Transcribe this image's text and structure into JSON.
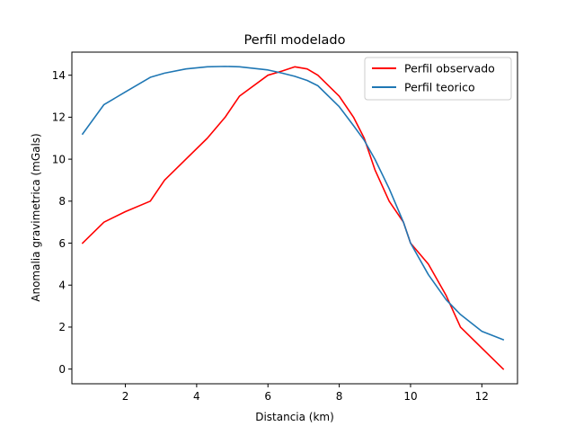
{
  "chart_data": {
    "type": "line",
    "title": "Perfil modelado",
    "xlabel": "Distancia (km)",
    "ylabel": "Anomalia gravimetrica (mGals)",
    "xlim": [
      0.5,
      13.0
    ],
    "ylim": [
      -0.7,
      15.1
    ],
    "xticks": [
      2,
      4,
      6,
      8,
      10,
      12
    ],
    "yticks": [
      0,
      2,
      4,
      6,
      8,
      10,
      12,
      14
    ],
    "grid": false,
    "legend_position": "top-right",
    "series": [
      {
        "name": "Perfil observado",
        "color": "#ff0000",
        "x": [
          0.8,
          1.4,
          2.0,
          2.7,
          3.1,
          3.7,
          4.3,
          4.8,
          5.2,
          6.0,
          6.4,
          6.75,
          7.1,
          7.4,
          8.0,
          8.4,
          8.7,
          9.0,
          9.4,
          9.8,
          10.0,
          10.5,
          11.0,
          11.4,
          12.0,
          12.6
        ],
        "y": [
          6.0,
          7.0,
          7.5,
          8.0,
          9.0,
          10.0,
          11.0,
          12.0,
          13.0,
          14.0,
          14.2,
          14.4,
          14.3,
          14.0,
          13.0,
          12.0,
          11.0,
          9.5,
          8.0,
          7.0,
          6.0,
          5.0,
          3.5,
          2.0,
          1.0,
          0.0
        ]
      },
      {
        "name": "Perfil teorico",
        "color": "#1f77b4",
        "x": [
          0.8,
          1.4,
          2.0,
          2.7,
          3.1,
          3.7,
          4.3,
          4.8,
          5.2,
          6.0,
          6.4,
          6.75,
          7.1,
          7.4,
          8.0,
          8.4,
          8.7,
          9.0,
          9.4,
          9.8,
          10.0,
          10.5,
          11.0,
          11.4,
          12.0,
          12.6
        ],
        "y": [
          11.2,
          12.6,
          13.2,
          13.9,
          14.1,
          14.3,
          14.4,
          14.42,
          14.4,
          14.25,
          14.1,
          13.95,
          13.75,
          13.5,
          12.5,
          11.6,
          10.9,
          10.0,
          8.6,
          7.0,
          6.0,
          4.5,
          3.3,
          2.6,
          1.8,
          1.4
        ]
      }
    ]
  }
}
